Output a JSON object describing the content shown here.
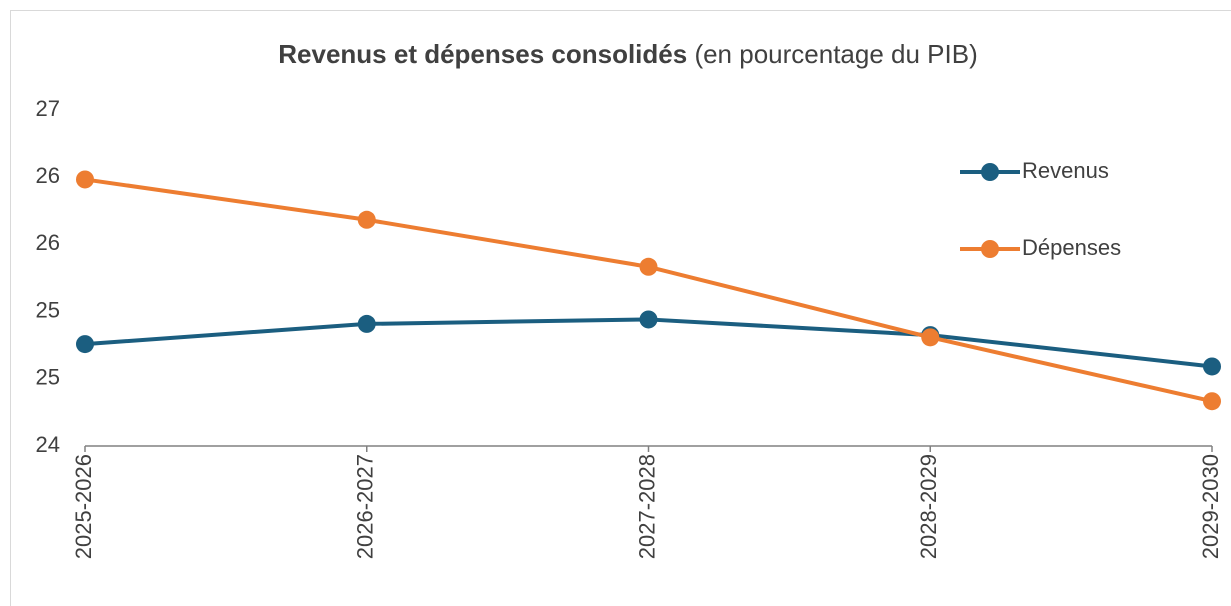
{
  "chart_data": {
    "type": "line",
    "title": "Revenus et dépenses consolidés",
    "subtitle": "(en pourcentage du PIB)",
    "categories": [
      "2025-2026",
      "2026-2027",
      "2027-2028",
      "2028-2029",
      "2029-2030"
    ],
    "series": [
      {
        "name": "Revenus",
        "color": "#1b5e80",
        "values": [
          24.91,
          25.09,
          25.13,
          24.99,
          24.71
        ]
      },
      {
        "name": "Dépenses",
        "color": "#ed7d31",
        "values": [
          26.38,
          26.02,
          25.6,
          24.97,
          24.4
        ]
      }
    ],
    "ylim": [
      24,
      27
    ],
    "yticks": [
      24,
      {
        "value": 24.6,
        "label": "25"
      },
      {
        "value": 25.2,
        "label": "25"
      },
      {
        "value": 25.8,
        "label": "26"
      },
      {
        "value": 26.4,
        "label": "26"
      },
      27
    ],
    "grid": false,
    "legend": "right"
  }
}
